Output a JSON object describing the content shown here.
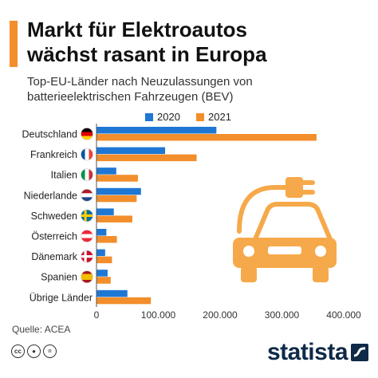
{
  "header": {
    "title_line1": "Markt für Elektroautos",
    "title_line2": "wächst rasant in Europa",
    "subtitle_line1": "Top-EU-Länder nach Neuzulassungen von",
    "subtitle_line2": "batterieelektrischen Fahrzeugen (BEV)"
  },
  "footer": {
    "source": "Quelle: ACEA",
    "brand": "statista",
    "license_icons": [
      "cc",
      "person",
      "equals"
    ]
  },
  "colors": {
    "series_2020": "#1f77d4",
    "series_2021": "#f28e2b",
    "accent": "#f28e2b",
    "illustration": "#f6a94a"
  },
  "decoration": {
    "illustration": "electric-car-plug-icon"
  },
  "chart_data": {
    "type": "bar",
    "orientation": "horizontal",
    "categories": [
      "Deutschland",
      "Frankreich",
      "Italien",
      "Niederlande",
      "Schweden",
      "Österreich",
      "Dänemark",
      "Spanien",
      "Übrige Länder"
    ],
    "flags": [
      "de",
      "fr",
      "it",
      "nl",
      "se",
      "at",
      "dk",
      "es",
      ""
    ],
    "series": [
      {
        "name": "2020",
        "values": [
          194000,
          111000,
          32000,
          72000,
          28000,
          16000,
          14000,
          18000,
          50000
        ]
      },
      {
        "name": "2021",
        "values": [
          356000,
          162000,
          67000,
          65000,
          58000,
          33000,
          25000,
          23000,
          88000
        ]
      }
    ],
    "xlim": [
      0,
      400000
    ],
    "xticks": [
      "0",
      "100.000",
      "200.000",
      "300.000",
      "400.000"
    ],
    "xtick_values": [
      0,
      100000,
      200000,
      300000,
      400000
    ],
    "legend_position": "top",
    "grid": false
  }
}
